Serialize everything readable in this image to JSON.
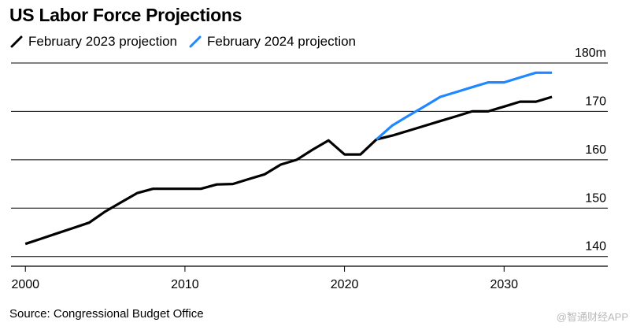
{
  "chart_data": {
    "type": "line",
    "title": "US Labor Force Projections",
    "xlabel": "",
    "ylabel": "",
    "y_unit_suffix": "m",
    "xlim": [
      1999.1,
      2036.5
    ],
    "ylim": [
      138,
      180
    ],
    "x_ticks": [
      2000,
      2010,
      2020,
      2030
    ],
    "y_ticks": [
      140,
      150,
      160,
      170,
      180
    ],
    "y_tick_labels": [
      "140",
      "150",
      "160",
      "170",
      "180m"
    ],
    "grid": "horizontal",
    "legend_position": "top-left",
    "series": [
      {
        "name": "February 2023 projection",
        "color": "#000000",
        "x": [
          2000,
          2001,
          2002,
          2003,
          2004,
          2005,
          2006,
          2007,
          2008,
          2009,
          2010,
          2011,
          2012,
          2013,
          2014,
          2015,
          2016,
          2017,
          2018,
          2019,
          2020,
          2021,
          2022,
          2023,
          2024,
          2025,
          2026,
          2027,
          2028,
          2029,
          2030,
          2031,
          2032,
          2033
        ],
        "values": [
          142.6,
          143.7,
          144.8,
          145.9,
          147.0,
          149.3,
          151.2,
          153.1,
          154.0,
          154.0,
          154.0,
          154.0,
          154.9,
          155.0,
          156.0,
          157.0,
          159.0,
          160.0,
          162.1,
          164.0,
          161.1,
          161.1,
          164.2,
          165.0,
          166.0,
          167.0,
          168.0,
          169.0,
          170.0,
          170.0,
          171.0,
          172.0,
          172.0,
          173.0
        ]
      },
      {
        "name": "February 2024 projection",
        "color": "#1f87ff",
        "x": [
          2022,
          2023,
          2024,
          2025,
          2026,
          2027,
          2028,
          2029,
          2030,
          2031,
          2032,
          2033
        ],
        "values": [
          164.2,
          167.1,
          169.1,
          171.0,
          173.0,
          174.0,
          175.0,
          176.0,
          176.0,
          177.0,
          178.0,
          178.0
        ]
      }
    ]
  },
  "source_text": "Source: Congressional Budget Office",
  "watermark_text": "@智通财经APP"
}
